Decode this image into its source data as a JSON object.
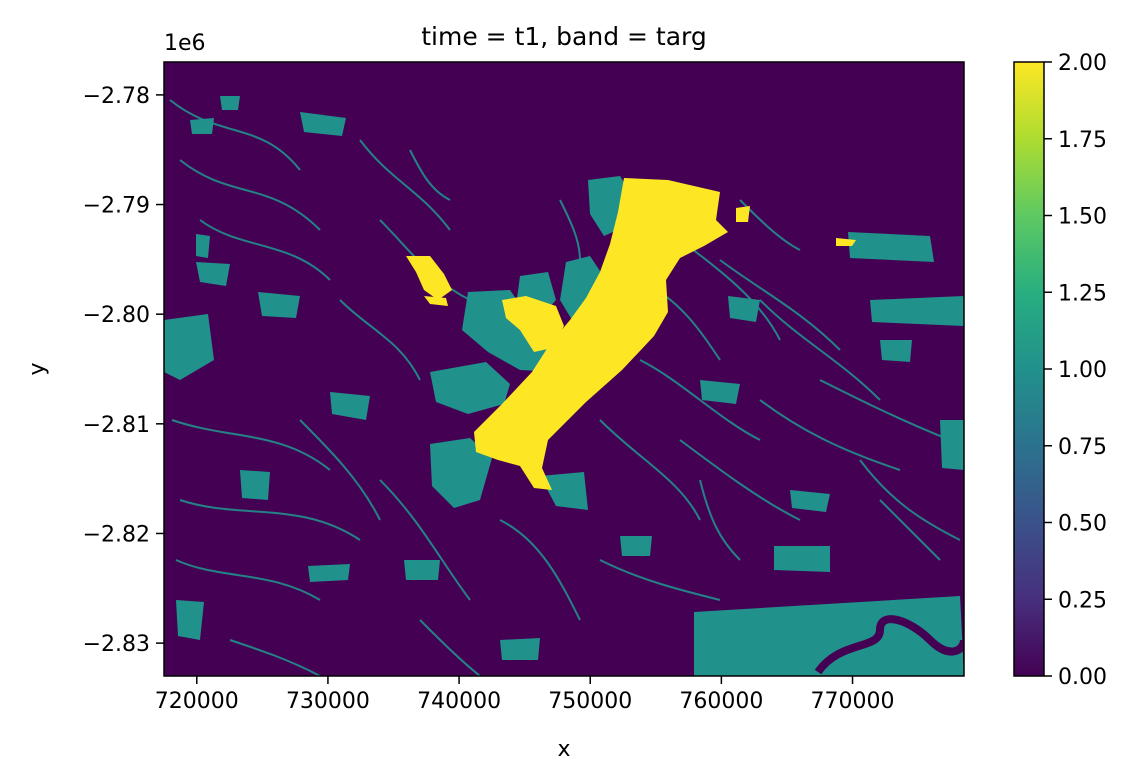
{
  "chart_data": {
    "type": "heatmap",
    "title": "time = t1, band = targ",
    "xlabel": "x",
    "ylabel": "y",
    "y_offset_label": "1e6",
    "xlim": [
      717500,
      778500
    ],
    "ylim": [
      -2.833,
      -2.777
    ],
    "x_ticks": [
      720000,
      730000,
      740000,
      750000,
      760000,
      770000
    ],
    "x_tick_labels": [
      "720000",
      "730000",
      "740000",
      "750000",
      "760000",
      "770000"
    ],
    "y_ticks": [
      -2.78,
      -2.79,
      -2.8,
      -2.81,
      -2.82,
      -2.83
    ],
    "y_tick_labels": [
      "−2.78",
      "−2.79",
      "−2.80",
      "−2.81",
      "−2.82",
      "−2.83"
    ],
    "colorbar": {
      "colormap": "viridis",
      "range": [
        0.0,
        2.0
      ],
      "ticks": [
        0.0,
        0.25,
        0.5,
        0.75,
        1.0,
        1.25,
        1.5,
        1.75,
        2.0
      ],
      "tick_labels": [
        "0.00",
        "0.25",
        "0.50",
        "0.75",
        "1.00",
        "1.25",
        "1.50",
        "1.75",
        "2.00"
      ]
    },
    "value_classes": [
      {
        "value": 0,
        "color": "#440154"
      },
      {
        "value": 1,
        "color": "#21918c"
      },
      {
        "value": 2,
        "color": "#fde725"
      }
    ]
  }
}
